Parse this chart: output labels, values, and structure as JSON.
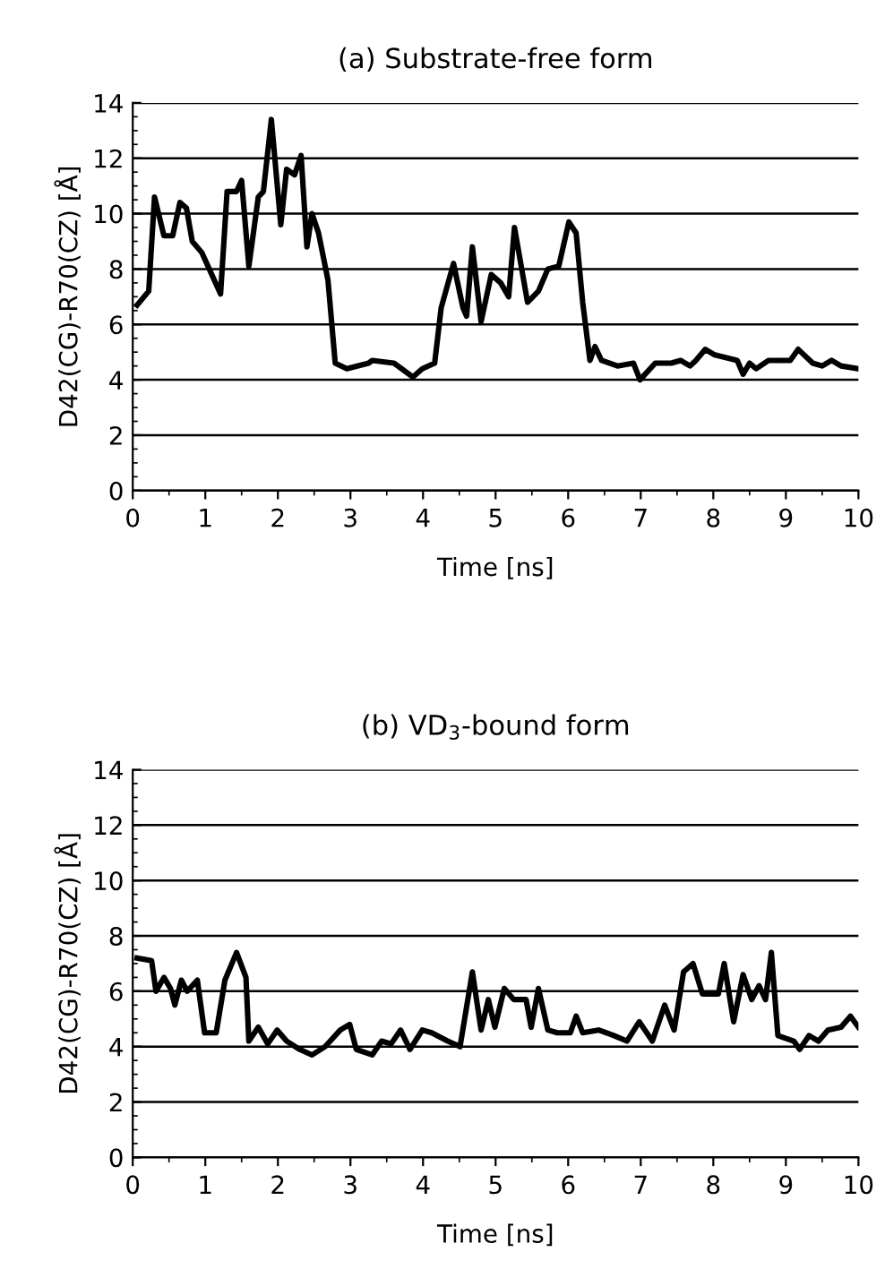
{
  "chart_data": [
    {
      "type": "line",
      "title": "(a) Substrate-free form",
      "xlabel": "Time [ns]",
      "ylabel": "D42(CG)-R70(CZ) [Å]",
      "xlim": [
        0,
        10
      ],
      "ylim": [
        0,
        14
      ],
      "xticks": [
        0,
        1,
        2,
        3,
        4,
        5,
        6,
        7,
        8,
        9,
        10
      ],
      "yticks": [
        0,
        2,
        4,
        6,
        8,
        10,
        12,
        14
      ],
      "grid": "y",
      "line_style": "solid",
      "marker": "none",
      "series": [
        {
          "color": "#000000",
          "x": [
            0.06,
            0.22,
            0.3,
            0.43,
            0.55,
            0.65,
            0.74,
            0.82,
            0.95,
            1.21,
            1.3,
            1.43,
            1.5,
            1.6,
            1.73,
            1.8,
            1.91,
            2.04,
            2.12,
            2.23,
            2.32,
            2.4,
            2.47,
            2.56,
            2.69,
            2.79,
            2.95,
            3.25,
            3.3,
            3.6,
            3.86,
            3.99,
            4.16,
            4.25,
            4.42,
            4.55,
            4.6,
            4.68,
            4.8,
            4.94,
            5.07,
            5.18,
            5.26,
            5.44,
            5.59,
            5.72,
            5.87,
            6.01,
            6.11,
            6.2,
            6.3,
            6.37,
            6.46,
            6.68,
            6.9,
            6.99,
            7.2,
            7.42,
            7.55,
            7.68,
            7.76,
            7.89,
            8.02,
            8.33,
            8.41,
            8.5,
            8.59,
            8.76,
            9.06,
            9.17,
            9.37,
            9.5,
            9.63,
            9.76,
            10.0
          ],
          "values": [
            6.7,
            7.2,
            10.6,
            9.2,
            9.2,
            10.4,
            10.2,
            9.0,
            8.6,
            7.1,
            10.8,
            10.8,
            11.2,
            8.1,
            10.6,
            10.8,
            13.4,
            9.6,
            11.6,
            11.4,
            12.1,
            8.8,
            10.0,
            9.3,
            7.6,
            4.6,
            4.4,
            4.6,
            4.7,
            4.6,
            4.1,
            4.4,
            4.6,
            6.6,
            8.2,
            6.6,
            6.3,
            8.8,
            6.1,
            7.8,
            7.5,
            7.0,
            9.5,
            6.8,
            7.2,
            8.0,
            8.1,
            9.7,
            9.3,
            6.8,
            4.7,
            5.2,
            4.7,
            4.5,
            4.6,
            4.0,
            4.6,
            4.6,
            4.7,
            4.5,
            4.7,
            5.1,
            4.9,
            4.7,
            4.2,
            4.6,
            4.4,
            4.7,
            4.7,
            5.1,
            4.6,
            4.5,
            4.7,
            4.5,
            4.4
          ]
        }
      ]
    },
    {
      "type": "line",
      "title": "(b) VD$_{3}$-bound form",
      "xlabel": "Time [ns]",
      "ylabel": "D42(CG)-R70(CZ) [Å]",
      "xlim": [
        0,
        10
      ],
      "ylim": [
        0,
        14
      ],
      "xticks": [
        0,
        1,
        2,
        3,
        4,
        5,
        6,
        7,
        8,
        9,
        10
      ],
      "yticks": [
        0,
        2,
        4,
        6,
        8,
        10,
        12,
        14
      ],
      "grid": "y",
      "line_style": "solid",
      "marker": "none",
      "series": [
        {
          "color": "#000000",
          "x": [
            0.06,
            0.26,
            0.32,
            0.43,
            0.52,
            0.58,
            0.67,
            0.75,
            0.89,
            0.99,
            1.15,
            1.27,
            1.43,
            1.56,
            1.6,
            1.73,
            1.86,
            1.99,
            2.12,
            2.3,
            2.47,
            2.65,
            2.86,
            2.99,
            3.08,
            3.3,
            3.43,
            3.56,
            3.69,
            3.82,
            3.99,
            4.12,
            4.34,
            4.51,
            4.68,
            4.8,
            4.9,
            4.99,
            5.12,
            5.25,
            5.42,
            5.49,
            5.59,
            5.72,
            5.85,
            6.03,
            6.11,
            6.2,
            6.42,
            6.63,
            6.81,
            6.98,
            7.16,
            7.33,
            7.46,
            7.59,
            7.72,
            7.85,
            8.07,
            8.15,
            8.28,
            8.41,
            8.53,
            8.63,
            8.72,
            8.8,
            8.89,
            9.11,
            9.19,
            9.32,
            9.45,
            9.58,
            9.76,
            9.89,
            10.0
          ],
          "values": [
            7.2,
            7.1,
            6.0,
            6.5,
            6.1,
            5.5,
            6.4,
            6.0,
            6.4,
            4.5,
            4.5,
            6.4,
            7.4,
            6.5,
            4.2,
            4.7,
            4.1,
            4.6,
            4.2,
            3.9,
            3.7,
            4.0,
            4.6,
            4.8,
            3.9,
            3.7,
            4.2,
            4.1,
            4.6,
            3.9,
            4.6,
            4.5,
            4.2,
            4.0,
            6.7,
            4.6,
            5.7,
            4.7,
            6.1,
            5.7,
            5.7,
            4.7,
            6.1,
            4.6,
            4.5,
            4.5,
            5.1,
            4.5,
            4.6,
            4.4,
            4.2,
            4.9,
            4.2,
            5.5,
            4.6,
            6.7,
            7.0,
            5.9,
            5.9,
            7.0,
            4.9,
            6.6,
            5.7,
            6.2,
            5.7,
            7.4,
            4.4,
            4.2,
            3.9,
            4.4,
            4.2,
            4.6,
            4.7,
            5.1,
            4.7
          ]
        }
      ]
    }
  ]
}
